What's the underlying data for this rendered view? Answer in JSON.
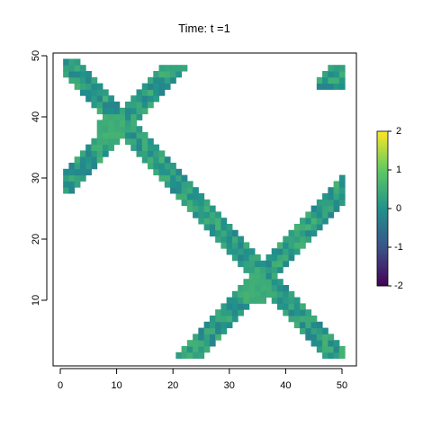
{
  "chart_data": {
    "type": "heatmap",
    "title": "Time: t =1",
    "xlabel": "",
    "ylabel": "",
    "xlim": [
      0,
      50
    ],
    "ylim": [
      0,
      50
    ],
    "x_ticks": [
      0,
      10,
      20,
      30,
      40,
      50
    ],
    "y_ticks": [
      10,
      20,
      30,
      40,
      50
    ],
    "colorbar": {
      "range": [
        -2,
        2
      ],
      "ticks": [
        -2,
        -1,
        0,
        1,
        2
      ],
      "colors": [
        "#440154",
        "#3b528b",
        "#21918c",
        "#5ec962",
        "#fde725"
      ]
    },
    "bands": [
      {
        "name": "",
        "y_start": 49,
        "y_end": 1,
        "x_start": 22,
        "x_end": 48,
        "orientation": "descending"
      },
      {
        "name": "",
        "y_start": 1,
        "y_end": 49,
        "x_start": 22,
        "x_end": 48,
        "orientation": "ascending"
      },
      {
        "name": "",
        "y_start": 28,
        "y_end": 48,
        "x_start": 2,
        "x_end": 20,
        "orientation": "ascending"
      },
      {
        "name": "",
        "y_start": 48,
        "y_end": 28,
        "x_start": 2,
        "x_end": 20,
        "orientation": "descending"
      }
    ],
    "intersections": [
      {
        "x": 9,
        "y": 38,
        "value": 0.4
      },
      {
        "x": 35,
        "y": 12,
        "value": 0.4
      }
    ],
    "cell_value_range": [
      -0.6,
      0.9
    ]
  }
}
